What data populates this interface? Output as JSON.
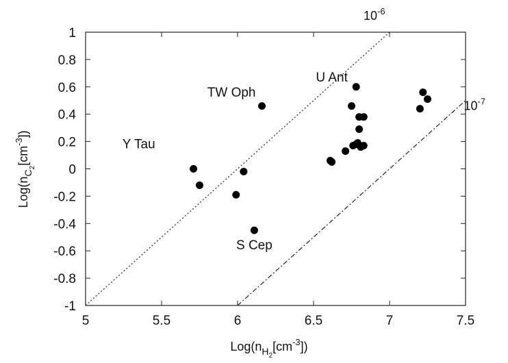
{
  "chart_data": {
    "type": "scatter",
    "xlim": [
      5,
      7.5
    ],
    "ylim": [
      -1,
      1
    ],
    "x_ticks": [
      "5",
      "5.5",
      "6",
      "6.5",
      "7",
      "7.5"
    ],
    "y_ticks": [
      "1",
      "0.8",
      "0.6",
      "0.4",
      "0.2",
      "0",
      "-0.2",
      "-0.4",
      "-0.6",
      "-0.8",
      "-1"
    ],
    "grid": false,
    "xlabel": {
      "prefix": "Log(n",
      "subscript": "H",
      "subsubscript": "2",
      "middle": "[cm",
      "superscript": "-3",
      "suffix": "])"
    },
    "ylabel": {
      "prefix": "Log(n",
      "subscript": "C",
      "subsubscript": "2",
      "middle": "[cm",
      "superscript": "-3",
      "suffix": "])"
    },
    "points": [
      {
        "x": 5.71,
        "y": 0.0
      },
      {
        "x": 5.75,
        "y": -0.12
      },
      {
        "x": 5.99,
        "y": -0.19
      },
      {
        "x": 6.04,
        "y": -0.02
      },
      {
        "x": 6.11,
        "y": -0.45
      },
      {
        "x": 6.16,
        "y": 0.46
      },
      {
        "x": 6.61,
        "y": 0.06
      },
      {
        "x": 6.62,
        "y": 0.05
      },
      {
        "x": 6.71,
        "y": 0.13
      },
      {
        "x": 6.75,
        "y": 0.46
      },
      {
        "x": 6.76,
        "y": 0.17
      },
      {
        "x": 6.78,
        "y": 0.18
      },
      {
        "x": 6.78,
        "y": 0.6
      },
      {
        "x": 6.79,
        "y": 0.19
      },
      {
        "x": 6.8,
        "y": 0.38
      },
      {
        "x": 6.8,
        "y": 0.29
      },
      {
        "x": 6.81,
        "y": 0.16
      },
      {
        "x": 6.83,
        "y": 0.38
      },
      {
        "x": 6.83,
        "y": 0.17
      },
      {
        "x": 7.2,
        "y": 0.44
      },
      {
        "x": 7.22,
        "y": 0.56
      },
      {
        "x": 7.25,
        "y": 0.51
      }
    ],
    "star_labels": [
      {
        "text": "Y Tau",
        "x": 5.35,
        "y": 0.15
      },
      {
        "text": "TW Oph",
        "x": 5.96,
        "y": 0.53
      },
      {
        "text": "U Ant",
        "x": 6.62,
        "y": 0.64
      },
      {
        "text": "S Cep",
        "x": 6.11,
        "y": -0.59
      }
    ],
    "lines": [
      {
        "name_base": "10",
        "name_exp": "-6",
        "style": "dotted",
        "x": [
          5.0,
          7.0
        ],
        "y": [
          -1.0,
          1.0
        ],
        "label_x": 6.9,
        "label_y": 1.09
      },
      {
        "name_base": "10",
        "name_exp": "-7",
        "style": "dash-dot",
        "x": [
          6.0,
          7.5
        ],
        "y": [
          -1.0,
          0.5
        ],
        "label_x": 7.56,
        "label_y": 0.43
      }
    ]
  }
}
